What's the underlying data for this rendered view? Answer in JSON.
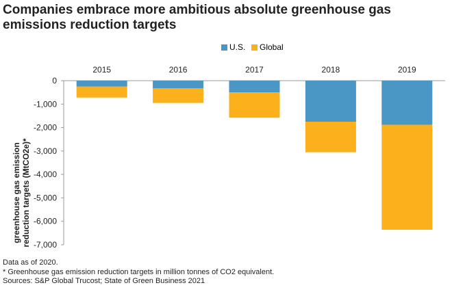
{
  "title": "Companies embrace more ambitious absolute greenhouse gas emissions reduction targets",
  "colors": {
    "us": "#4a96c4",
    "global": "#fbb01c",
    "axis": "#999999",
    "text": "#222222"
  },
  "chart_data": {
    "type": "bar",
    "stacked": true,
    "categories": [
      "2015",
      "2016",
      "2017",
      "2018",
      "2019"
    ],
    "series": [
      {
        "name": "U.S.",
        "values": [
          -250,
          -330,
          -500,
          -1750,
          -1880
        ]
      },
      {
        "name": "Global",
        "values": [
          -470,
          -620,
          -1080,
          -1300,
          -4480
        ]
      }
    ],
    "ylabel": "greenhouse gas emission reduction targets (MtCO2e)*",
    "yticks": [
      0,
      -1000,
      -2000,
      -3000,
      -4000,
      -5000,
      -6000,
      -7000
    ],
    "ytick_labels": [
      "0",
      "-1,000",
      "-2,000",
      "-3,000",
      "-4,000",
      "-5,000",
      "-6,000",
      "-7,000"
    ],
    "ylim": [
      -7000,
      0
    ],
    "legend_position": "top-center",
    "category_axis_position": "top",
    "grid": false
  },
  "notes": [
    "Data as of 2020.",
    "* Greenhouse gas emission reduction targets in million tonnes of CO2 equivalent.",
    "Sources: S&P Global Trucost; State of Green Business 2021"
  ]
}
